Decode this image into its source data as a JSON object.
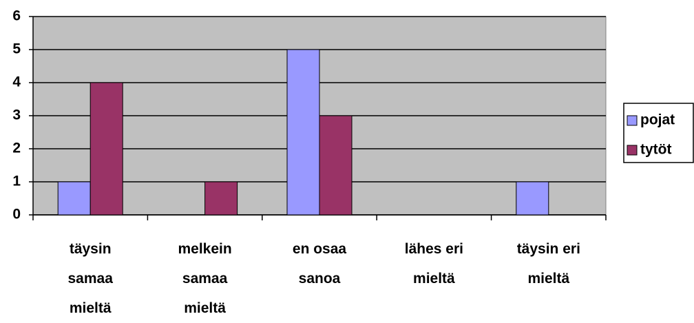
{
  "chart_data": {
    "type": "bar",
    "categories": [
      "täysin\nsamaa\nmieltä",
      "melkein\nsamaa\nmieltä",
      "en osaa\nsanoa",
      "lähes eri\nmieltä",
      "täysin eri\nmieltä"
    ],
    "series": [
      {
        "name": "pojat",
        "color": "#9999ff",
        "values": [
          1,
          0,
          5,
          0,
          1
        ]
      },
      {
        "name": "tytöt",
        "color": "#993366",
        "values": [
          4,
          1,
          3,
          0,
          0
        ]
      }
    ],
    "ylim": [
      0,
      6
    ],
    "yticks": [
      0,
      1,
      2,
      3,
      4,
      5,
      6
    ],
    "grid": true,
    "legend": "right"
  }
}
